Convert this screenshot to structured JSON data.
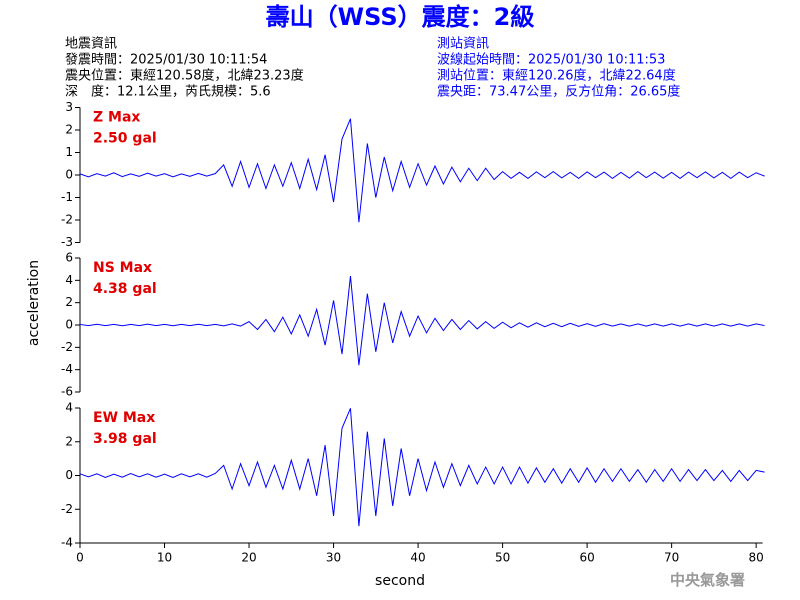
{
  "header": {
    "title": "壽山（WSS）震度：2級",
    "left": [
      "地震資訊",
      "發震時間：2025/01/30 10:11:54",
      "震央位置：東經120.58度，北緯23.23度",
      "深　度：12.1公里，芮氏規模：5.6"
    ],
    "right": [
      "測站資訊",
      "波線起始時間：2025/01/30 10:11:53",
      "測站位置：東經120.26度，北緯22.64度",
      "震央距：73.47公里，反方位角：26.65度"
    ],
    "footer": "中央氣象署"
  },
  "axes": {
    "ylabel": "acceleration",
    "xlabel": "second"
  },
  "chart_data": [
    {
      "type": "line",
      "name": "Z Max",
      "max_label": "2.50 gal",
      "color": "#0000ff",
      "xlim": [
        0,
        81
      ],
      "ylim": [
        -3,
        3
      ],
      "yticks": [
        -3,
        -2,
        -1,
        0,
        1,
        2,
        3
      ],
      "x": [
        0,
        1,
        2,
        3,
        4,
        5,
        6,
        7,
        8,
        9,
        10,
        11,
        12,
        13,
        14,
        15,
        16,
        17,
        18,
        19,
        20,
        21,
        22,
        23,
        24,
        25,
        26,
        27,
        28,
        29,
        30,
        31,
        32,
        33,
        34,
        35,
        36,
        37,
        38,
        39,
        40,
        41,
        42,
        43,
        44,
        45,
        46,
        47,
        48,
        49,
        50,
        51,
        52,
        53,
        54,
        55,
        56,
        57,
        58,
        59,
        60,
        61,
        62,
        63,
        64,
        65,
        66,
        67,
        68,
        69,
        70,
        71,
        72,
        73,
        74,
        75,
        76,
        77,
        78,
        79,
        80,
        81
      ],
      "values": [
        0.05,
        -0.08,
        0.06,
        -0.05,
        0.1,
        -0.07,
        0.05,
        -0.06,
        0.08,
        -0.05,
        0.06,
        -0.08,
        0.05,
        -0.06,
        0.07,
        -0.05,
        0.06,
        0.45,
        -0.5,
        0.6,
        -0.55,
        0.5,
        -0.6,
        0.45,
        -0.5,
        0.55,
        -0.6,
        0.7,
        -0.65,
        0.9,
        -1.2,
        1.6,
        2.5,
        -2.1,
        1.4,
        -1.0,
        0.8,
        -0.7,
        0.6,
        -0.55,
        0.5,
        -0.45,
        0.4,
        -0.4,
        0.35,
        -0.3,
        0.3,
        -0.25,
        0.3,
        -0.2,
        0.15,
        -0.15,
        0.12,
        -0.15,
        0.14,
        -0.12,
        0.15,
        -0.13,
        0.12,
        -0.15,
        0.14,
        -0.12,
        0.13,
        -0.15,
        0.12,
        -0.14,
        0.15,
        -0.12,
        0.13,
        -0.14,
        0.12,
        -0.15,
        0.13,
        -0.12,
        0.14,
        -0.13,
        0.12,
        -0.15,
        0.13,
        -0.12,
        0.1,
        -0.05
      ]
    },
    {
      "type": "line",
      "name": "NS Max",
      "max_label": "4.38 gal",
      "color": "#0000ff",
      "xlim": [
        0,
        81
      ],
      "ylim": [
        -6,
        6
      ],
      "yticks": [
        -6,
        -4,
        -2,
        0,
        2,
        4,
        6
      ],
      "x": [
        0,
        1,
        2,
        3,
        4,
        5,
        6,
        7,
        8,
        9,
        10,
        11,
        12,
        13,
        14,
        15,
        16,
        17,
        18,
        19,
        20,
        21,
        22,
        23,
        24,
        25,
        26,
        27,
        28,
        29,
        30,
        31,
        32,
        33,
        34,
        35,
        36,
        37,
        38,
        39,
        40,
        41,
        42,
        43,
        44,
        45,
        46,
        47,
        48,
        49,
        50,
        51,
        52,
        53,
        54,
        55,
        56,
        57,
        58,
        59,
        60,
        61,
        62,
        63,
        64,
        65,
        66,
        67,
        68,
        69,
        70,
        71,
        72,
        73,
        74,
        75,
        76,
        77,
        78,
        79,
        80,
        81
      ],
      "values": [
        0.05,
        -0.06,
        0.07,
        -0.05,
        0.06,
        -0.07,
        0.05,
        -0.06,
        0.08,
        -0.05,
        0.06,
        -0.07,
        0.05,
        -0.06,
        0.07,
        -0.05,
        0.06,
        -0.08,
        0.1,
        -0.1,
        0.3,
        -0.4,
        0.5,
        -0.6,
        0.7,
        -0.8,
        0.9,
        -1.0,
        1.4,
        -1.8,
        2.2,
        -2.6,
        4.38,
        -3.6,
        2.8,
        -2.4,
        2.0,
        -1.6,
        1.2,
        -1.0,
        0.8,
        -0.7,
        0.6,
        -0.5,
        0.5,
        -0.4,
        0.4,
        -0.35,
        0.3,
        -0.3,
        0.25,
        -0.25,
        0.2,
        -0.2,
        0.2,
        -0.15,
        0.15,
        -0.15,
        0.15,
        -0.12,
        0.12,
        -0.12,
        0.12,
        -0.1,
        0.1,
        -0.1,
        0.1,
        -0.1,
        0.1,
        -0.1,
        0.1,
        -0.1,
        0.1,
        -0.1,
        0.1,
        -0.1,
        0.1,
        -0.1,
        0.1,
        -0.1,
        0.1,
        -0.05
      ]
    },
    {
      "type": "line",
      "name": "EW Max",
      "max_label": "3.98 gal",
      "color": "#0000ff",
      "xlim": [
        0,
        81
      ],
      "ylim": [
        -4,
        4
      ],
      "yticks": [
        -4,
        -2,
        0,
        2,
        4
      ],
      "xticks": [
        0,
        10,
        20,
        30,
        40,
        50,
        60,
        70,
        80
      ],
      "x": [
        0,
        1,
        2,
        3,
        4,
        5,
        6,
        7,
        8,
        9,
        10,
        11,
        12,
        13,
        14,
        15,
        16,
        17,
        18,
        19,
        20,
        21,
        22,
        23,
        24,
        25,
        26,
        27,
        28,
        29,
        30,
        31,
        32,
        33,
        34,
        35,
        36,
        37,
        38,
        39,
        40,
        41,
        42,
        43,
        44,
        45,
        46,
        47,
        48,
        49,
        50,
        51,
        52,
        53,
        54,
        55,
        56,
        57,
        58,
        59,
        60,
        61,
        62,
        63,
        64,
        65,
        66,
        67,
        68,
        69,
        70,
        71,
        72,
        73,
        74,
        75,
        76,
        77,
        78,
        79,
        80,
        81
      ],
      "values": [
        0.1,
        -0.08,
        0.1,
        -0.12,
        0.08,
        -0.1,
        0.12,
        -0.08,
        0.1,
        -0.1,
        0.08,
        -0.12,
        0.1,
        -0.08,
        0.1,
        -0.1,
        0.12,
        0.6,
        -0.8,
        0.7,
        -0.6,
        0.8,
        -0.7,
        0.6,
        -0.8,
        0.9,
        -0.8,
        1.0,
        -1.2,
        1.8,
        -2.4,
        2.8,
        3.98,
        -3.0,
        2.6,
        -2.4,
        2.2,
        -1.8,
        1.6,
        -1.2,
        1.0,
        -0.9,
        0.8,
        -0.7,
        0.7,
        -0.6,
        0.6,
        -0.5,
        0.5,
        -0.5,
        0.5,
        -0.5,
        0.5,
        -0.45,
        0.45,
        -0.4,
        0.4,
        -0.45,
        0.4,
        -0.4,
        0.45,
        -0.4,
        0.4,
        -0.35,
        0.4,
        -0.35,
        0.35,
        -0.4,
        0.35,
        -0.35,
        0.4,
        -0.35,
        0.35,
        -0.3,
        0.35,
        -0.3,
        0.3,
        -0.35,
        0.3,
        -0.3,
        0.3,
        0.2
      ]
    }
  ]
}
